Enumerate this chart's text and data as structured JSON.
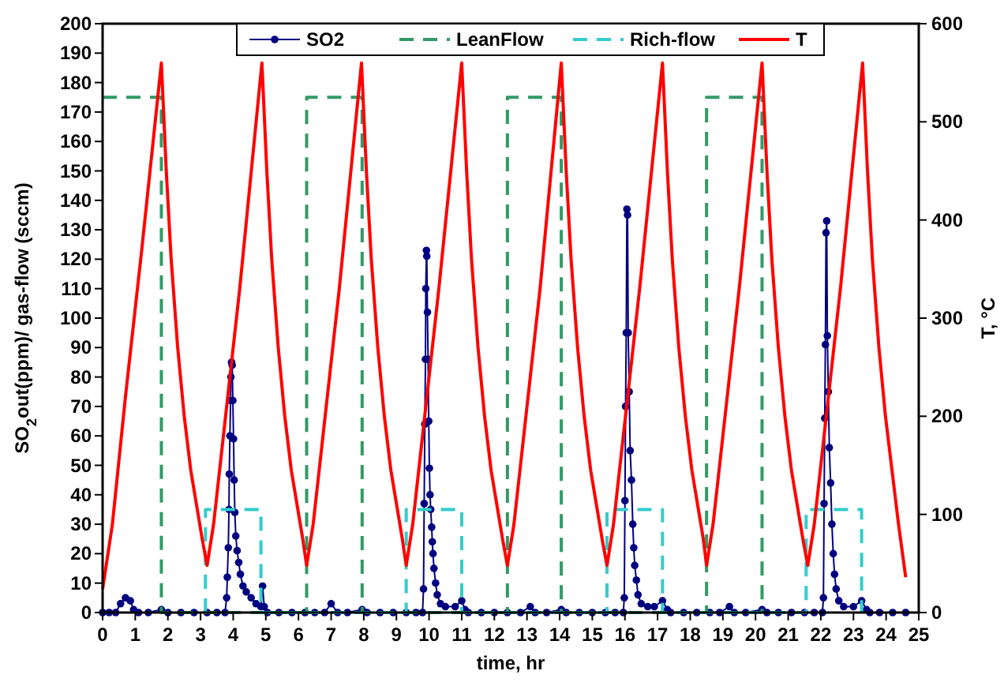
{
  "chart_data": {
    "type": "line",
    "xlabel": "time, hr",
    "ylabel": "SO$_{2}$out(ppm)/ gas-flow (sccm)",
    "y2label": "T, °C",
    "xlim": [
      0,
      25
    ],
    "xticks": [
      0,
      1,
      2,
      3,
      4,
      5,
      6,
      7,
      8,
      9,
      10,
      11,
      12,
      13,
      14,
      15,
      16,
      17,
      18,
      19,
      20,
      21,
      22,
      23,
      24,
      25
    ],
    "ylim": [
      0,
      200
    ],
    "yticks": [
      0,
      10,
      20,
      30,
      40,
      50,
      60,
      70,
      80,
      90,
      100,
      110,
      120,
      130,
      140,
      150,
      160,
      170,
      180,
      190,
      200
    ],
    "y2lim": [
      0,
      600
    ],
    "y2ticks": [
      0,
      100,
      200,
      300,
      400,
      500,
      600
    ],
    "grid": false,
    "legend": "top",
    "series": [
      {
        "name": "SO2",
        "color": "#000080",
        "marker": "circle",
        "line_style": "solid",
        "x": [
          0,
          0.2,
          0.4,
          0.55,
          0.7,
          0.85,
          0.95,
          1.1,
          1.4,
          1.8,
          2.0,
          2.4,
          2.8,
          3.2,
          3.5,
          3.75,
          3.8,
          3.82,
          3.85,
          3.87,
          3.88,
          3.9,
          3.92,
          3.93,
          3.95,
          3.97,
          3.99,
          4.01,
          4.03,
          4.05,
          4.08,
          4.12,
          4.17,
          4.22,
          4.3,
          4.4,
          4.55,
          4.7,
          4.85,
          4.9,
          4.95,
          5.05,
          5.4,
          5.8,
          6.2,
          6.5,
          6.8,
          7.0,
          7.2,
          7.5,
          7.95,
          8.1,
          8.5,
          8.9,
          9.3,
          9.6,
          9.8,
          9.83,
          9.85,
          9.87,
          9.89,
          9.9,
          9.92,
          9.93,
          9.95,
          9.97,
          9.99,
          10.01,
          10.03,
          10.05,
          10.08,
          10.1,
          10.12,
          10.15,
          10.2,
          10.25,
          10.35,
          10.5,
          10.8,
          11.0,
          11.1,
          11.2,
          11.6,
          12.0,
          12.4,
          12.8,
          13.1,
          13.25,
          13.6,
          14.05,
          14.2,
          14.6,
          15.0,
          15.4,
          15.7,
          15.95,
          15.98,
          16.0,
          16.02,
          16.04,
          16.06,
          16.08,
          16.1,
          16.13,
          16.16,
          16.2,
          16.24,
          16.27,
          16.3,
          16.35,
          16.4,
          16.5,
          16.7,
          16.9,
          17.15,
          17.3,
          17.4,
          17.8,
          18.2,
          18.6,
          18.9,
          19.2,
          19.35,
          19.7,
          20.2,
          20.35,
          20.7,
          21.1,
          21.5,
          21.8,
          22.05,
          22.08,
          22.1,
          22.12,
          22.14,
          22.16,
          22.18,
          22.2,
          22.23,
          22.26,
          22.3,
          22.34,
          22.38,
          22.42,
          22.47,
          22.55,
          22.7,
          23.0,
          23.25,
          23.4,
          23.5,
          23.8,
          24.2,
          24.6
        ],
        "values": [
          0,
          0,
          0,
          3,
          5,
          4,
          1,
          0,
          0,
          1,
          0,
          0,
          0,
          0,
          0,
          0,
          5,
          12,
          22,
          35,
          47,
          60,
          72,
          80,
          85,
          84,
          72,
          59,
          45,
          34,
          26,
          21,
          17,
          13,
          9,
          7,
          5,
          3,
          2,
          9,
          2,
          0,
          0,
          0,
          0,
          0,
          0,
          3,
          0,
          0,
          1,
          0,
          0,
          0,
          0,
          0,
          0,
          8,
          37,
          64,
          86,
          110,
          123,
          121,
          102,
          86,
          65,
          49,
          40,
          35,
          29,
          24,
          20,
          15,
          10,
          6,
          3,
          2,
          2,
          4,
          1,
          0,
          0,
          0,
          0,
          0,
          2,
          0,
          0,
          1,
          0,
          0,
          0,
          0,
          0,
          0,
          5,
          38,
          70,
          95,
          137,
          135,
          95,
          75,
          55,
          45,
          30,
          22,
          16,
          11,
          6,
          3,
          2,
          2,
          4,
          1,
          0,
          0,
          0,
          0,
          0,
          2,
          0,
          0,
          1,
          0,
          0,
          0,
          0,
          0,
          0,
          5,
          37,
          66,
          91,
          129,
          133,
          94,
          75,
          56,
          44,
          30,
          20,
          13,
          8,
          4,
          2,
          2,
          4,
          1,
          0,
          0,
          0,
          0
        ]
      },
      {
        "name": "LeanFlow",
        "color": "#339966",
        "marker": "none",
        "line_style": "dashed",
        "x": [
          0,
          1.8,
          1.8,
          6.25,
          6.25,
          7.95,
          7.95,
          12.4,
          12.4,
          14.05,
          14.05,
          18.5,
          18.5,
          20.2,
          20.2
        ],
        "values": [
          175,
          175,
          0,
          0,
          175,
          175,
          0,
          0,
          175,
          175,
          0,
          0,
          175,
          175,
          0
        ]
      },
      {
        "name": "Rich-flow",
        "color": "#33cccc",
        "marker": "none",
        "line_style": "dashed",
        "x": [
          3.15,
          3.15,
          4.85,
          4.85,
          9.3,
          9.3,
          11.0,
          11.0,
          15.45,
          15.45,
          17.15,
          17.15,
          21.55,
          21.55,
          23.25,
          23.25
        ],
        "values": [
          0,
          35,
          35,
          0,
          0,
          35,
          35,
          0,
          0,
          35,
          35,
          0,
          0,
          35,
          35,
          0
        ]
      },
      {
        "name": "T",
        "color": "#ff0000",
        "marker": "none",
        "line_style": "solid",
        "axis": "y2",
        "x": [
          0,
          0.3,
          0.7,
          1.2,
          1.8,
          1.95,
          2.1,
          2.3,
          2.5,
          2.7,
          2.9,
          3.05,
          3.2,
          3.4,
          3.7,
          4.2,
          4.88,
          5.03,
          5.18,
          5.38,
          5.58,
          5.78,
          5.98,
          6.13,
          6.25,
          6.45,
          6.75,
          7.25,
          7.93,
          8.08,
          8.23,
          8.43,
          8.63,
          8.83,
          9.03,
          9.18,
          9.3,
          9.5,
          9.8,
          10.3,
          11.0,
          11.15,
          11.3,
          11.5,
          11.7,
          11.9,
          12.1,
          12.25,
          12.4,
          12.6,
          12.9,
          13.4,
          14.05,
          14.2,
          14.35,
          14.55,
          14.75,
          14.95,
          15.15,
          15.3,
          15.45,
          15.65,
          15.95,
          16.45,
          17.15,
          17.3,
          17.45,
          17.65,
          17.85,
          18.05,
          18.25,
          18.4,
          18.5,
          18.7,
          19.0,
          19.5,
          20.2,
          20.35,
          20.5,
          20.7,
          20.9,
          21.1,
          21.3,
          21.45,
          21.6,
          21.8,
          22.1,
          22.6,
          23.28,
          23.43,
          23.58,
          23.78,
          23.98,
          24.18,
          24.38,
          24.6
        ],
        "values": [
          24,
          90,
          220,
          370,
          560,
          450,
          360,
          270,
          200,
          145,
          105,
          75,
          48,
          90,
          180,
          330,
          560,
          450,
          360,
          270,
          200,
          145,
          105,
          75,
          48,
          90,
          180,
          330,
          560,
          450,
          360,
          270,
          200,
          145,
          105,
          75,
          48,
          90,
          180,
          330,
          560,
          450,
          360,
          270,
          200,
          145,
          105,
          75,
          48,
          90,
          180,
          330,
          560,
          450,
          360,
          270,
          200,
          145,
          105,
          75,
          48,
          90,
          180,
          330,
          560,
          450,
          360,
          270,
          200,
          145,
          105,
          75,
          48,
          90,
          180,
          330,
          560,
          450,
          360,
          270,
          200,
          145,
          105,
          75,
          48,
          90,
          180,
          330,
          560,
          450,
          360,
          270,
          200,
          145,
          90,
          36
        ]
      }
    ]
  }
}
